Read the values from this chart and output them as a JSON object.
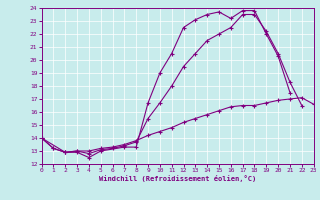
{
  "xlabel": "Windchill (Refroidissement éolien,°C)",
  "bg_color": "#c8ecec",
  "line_color": "#800080",
  "grid_color": "#ffffff",
  "xmin": 0,
  "xmax": 23,
  "ymin": 12,
  "ymax": 24,
  "line1_x": [
    0,
    1,
    2,
    3,
    4,
    5,
    7,
    8,
    9,
    10,
    11,
    12,
    13,
    14,
    15,
    16,
    17,
    18,
    19,
    20,
    21
  ],
  "line1_y": [
    14.0,
    13.2,
    12.9,
    12.9,
    12.5,
    13.0,
    13.3,
    13.3,
    16.7,
    19.0,
    20.5,
    22.5,
    23.1,
    23.5,
    23.7,
    23.2,
    23.8,
    23.8,
    22.0,
    20.3,
    17.5
  ],
  "line2_x": [
    0,
    1,
    2,
    3,
    4,
    5,
    6,
    7,
    8,
    9,
    10,
    11,
    12,
    13,
    14,
    15,
    16,
    17,
    18,
    19,
    20,
    21,
    22
  ],
  "line2_y": [
    14.0,
    13.2,
    12.9,
    13.0,
    12.8,
    13.1,
    13.2,
    13.4,
    13.7,
    15.5,
    16.7,
    18.0,
    19.5,
    20.5,
    21.5,
    22.0,
    22.5,
    23.5,
    23.5,
    22.2,
    20.5,
    18.3,
    16.5
  ],
  "line3_x": [
    0,
    2,
    3,
    4,
    5,
    6,
    7,
    8,
    9,
    10,
    11,
    12,
    13,
    14,
    15,
    16,
    17,
    18,
    19,
    20,
    21,
    22,
    23
  ],
  "line3_y": [
    14.0,
    12.9,
    13.0,
    13.0,
    13.2,
    13.3,
    13.5,
    13.8,
    14.2,
    14.5,
    14.8,
    15.2,
    15.5,
    15.8,
    16.1,
    16.4,
    16.5,
    16.5,
    16.7,
    16.9,
    17.0,
    17.1,
    16.6
  ]
}
